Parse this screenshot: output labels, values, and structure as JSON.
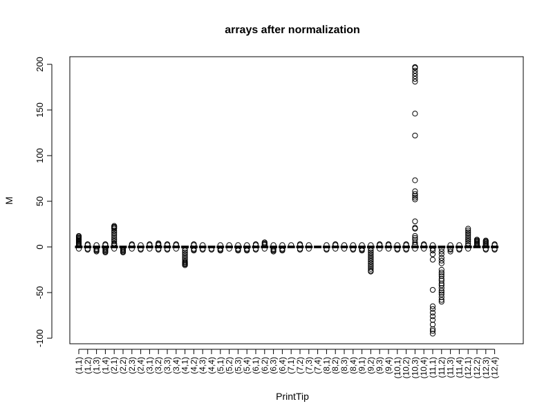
{
  "chart_data": {
    "type": "boxplot",
    "title": "arrays after normalization",
    "xlabel": "PrintTip",
    "ylabel": "M",
    "ylim": [
      -105,
      210
    ],
    "yticks": [
      -100,
      -50,
      0,
      50,
      100,
      150,
      200
    ],
    "ytick_labels": [
      "-100",
      "-50",
      "0",
      "50",
      "100",
      "150",
      "200"
    ],
    "categories": [
      "(1,1)",
      "(1,2)",
      "(1,3)",
      "(1,4)",
      "(2,1)",
      "(2,2)",
      "(2,3)",
      "(2,4)",
      "(3,1)",
      "(3,2)",
      "(3,3)",
      "(3,4)",
      "(4,1)",
      "(4,2)",
      "(4,3)",
      "(4,4)",
      "(5,1)",
      "(5,2)",
      "(5,3)",
      "(5,4)",
      "(6,1)",
      "(6,2)",
      "(6,3)",
      "(6,4)",
      "(7,1)",
      "(7,2)",
      "(7,3)",
      "(7,4)",
      "(8,1)",
      "(8,2)",
      "(8,3)",
      "(8,4)",
      "(9,1)",
      "(9,2)",
      "(9,3)",
      "(9,4)",
      "(10,1)",
      "(10,2)",
      "(10,3)",
      "(10,4)",
      "(11,1)",
      "(11,2)",
      "(11,3)",
      "(11,4)",
      "(12,1)",
      "(12,2)",
      "(12,3)",
      "(12,4)"
    ],
    "groups": [
      {
        "range": [
          -1,
          1
        ],
        "outliers": [
          -2,
          2,
          3,
          4,
          5,
          6,
          7,
          8,
          9,
          10,
          11,
          12
        ]
      },
      {
        "range": [
          -1,
          1
        ],
        "outliers": [
          -3,
          -2,
          2,
          3
        ]
      },
      {
        "range": [
          -1,
          1
        ],
        "outliers": [
          -5,
          -4,
          -3,
          -2,
          2
        ]
      },
      {
        "range": [
          -1,
          1
        ],
        "outliers": [
          -6,
          -5,
          -4,
          -3,
          -2,
          2,
          3
        ]
      },
      {
        "range": [
          -1,
          1
        ],
        "outliers": [
          -2,
          2,
          3,
          4,
          6,
          8,
          10,
          12,
          14,
          16,
          18,
          20,
          21,
          22,
          23
        ]
      },
      {
        "range": [
          -1,
          1
        ],
        "outliers": [
          -6,
          -5,
          -4,
          -3,
          -2
        ]
      },
      {
        "range": [
          -1,
          1
        ],
        "outliers": [
          -2,
          2,
          3
        ]
      },
      {
        "range": [
          -1,
          1
        ],
        "outliers": [
          -3,
          -2,
          2
        ]
      },
      {
        "range": [
          -1,
          1
        ],
        "outliers": [
          -2,
          2,
          3
        ]
      },
      {
        "range": [
          -1,
          1
        ],
        "outliers": [
          -3,
          -2,
          2,
          3,
          4
        ]
      },
      {
        "range": [
          -1,
          1
        ],
        "outliers": [
          -3,
          -2,
          2,
          3
        ]
      },
      {
        "range": [
          -1,
          1
        ],
        "outliers": [
          -2,
          2,
          3
        ]
      },
      {
        "range": [
          -1,
          1
        ],
        "outliers": [
          -20,
          -19,
          -18,
          -17,
          -16,
          -14,
          -12,
          -10,
          -8,
          -6,
          -4,
          -2
        ]
      },
      {
        "range": [
          -1,
          1
        ],
        "outliers": [
          -4,
          -3,
          -2,
          2,
          3
        ]
      },
      {
        "range": [
          -1,
          1
        ],
        "outliers": [
          -3,
          -2,
          2
        ]
      },
      {
        "range": [
          -1,
          1
        ],
        "outliers": [
          -3,
          -2
        ]
      },
      {
        "range": [
          -1,
          1
        ],
        "outliers": [
          -4,
          -3,
          -2,
          2
        ]
      },
      {
        "range": [
          -1,
          1
        ],
        "outliers": [
          -2,
          2
        ]
      },
      {
        "range": [
          -1,
          1
        ],
        "outliers": [
          -4,
          -3,
          -2,
          2
        ]
      },
      {
        "range": [
          -1,
          1
        ],
        "outliers": [
          -4,
          -3,
          -2,
          2
        ]
      },
      {
        "range": [
          -1,
          1
        ],
        "outliers": [
          -3,
          -2,
          2,
          3
        ]
      },
      {
        "range": [
          -1,
          1
        ],
        "outliers": [
          -2,
          2,
          3,
          4,
          5
        ]
      },
      {
        "range": [
          -1,
          1
        ],
        "outliers": [
          -5,
          -4,
          -3,
          -2,
          2
        ]
      },
      {
        "range": [
          -1,
          1
        ],
        "outliers": [
          -4,
          -3,
          -2,
          2
        ]
      },
      {
        "range": [
          -1,
          1
        ],
        "outliers": [
          2
        ]
      },
      {
        "range": [
          -1,
          1
        ],
        "outliers": [
          -3,
          -2,
          2,
          3
        ]
      },
      {
        "range": [
          -1,
          1
        ],
        "outliers": [
          -2,
          2
        ]
      },
      {
        "range": [
          -1,
          1
        ],
        "outliers": []
      },
      {
        "range": [
          -1,
          1
        ],
        "outliers": [
          -3,
          -2,
          2
        ]
      },
      {
        "range": [
          -1,
          1
        ],
        "outliers": [
          -2,
          2,
          3
        ]
      },
      {
        "range": [
          -1,
          1
        ],
        "outliers": [
          -2,
          2
        ]
      },
      {
        "range": [
          -1,
          1
        ],
        "outliers": [
          -3,
          -2,
          2
        ]
      },
      {
        "range": [
          -1,
          1
        ],
        "outliers": [
          -4,
          -3,
          -2,
          2
        ]
      },
      {
        "range": [
          -1,
          1
        ],
        "outliers": [
          -27,
          -26,
          -24,
          -22,
          -20,
          -18,
          -16,
          -14,
          -12,
          -10,
          -8,
          -6,
          -4,
          -2,
          2
        ]
      },
      {
        "range": [
          -1,
          1
        ],
        "outliers": [
          -2,
          2,
          3
        ]
      },
      {
        "range": [
          -1,
          1
        ],
        "outliers": [
          -2,
          2,
          3
        ]
      },
      {
        "range": [
          -1,
          1
        ],
        "outliers": [
          -3,
          -2,
          2
        ]
      },
      {
        "range": [
          -1,
          1
        ],
        "outliers": [
          -3,
          -2,
          2,
          3
        ]
      },
      {
        "range": [
          -1,
          1
        ],
        "outliers": [
          -2,
          2,
          3,
          5,
          8,
          10,
          12,
          20,
          21,
          28,
          52,
          54,
          56,
          58,
          61,
          73,
          122,
          146,
          181,
          184,
          187,
          190,
          193,
          196,
          197
        ]
      },
      {
        "range": [
          -1,
          1
        ],
        "outliers": [
          -2,
          2,
          3
        ]
      },
      {
        "range": [
          -1,
          1
        ],
        "outliers": [
          -95,
          -92,
          -90,
          -85,
          -80,
          -76,
          -72,
          -68,
          -65,
          -47,
          -14,
          -8,
          -4,
          -2,
          2
        ]
      },
      {
        "range": [
          -1,
          1
        ],
        "outliers": [
          -60,
          -58,
          -55,
          -52,
          -50,
          -48,
          -45,
          -42,
          -40,
          -37,
          -35,
          -32,
          -30,
          -28,
          -25,
          -18,
          -15,
          -12,
          -8,
          -5,
          -2
        ]
      },
      {
        "range": [
          -1,
          1
        ],
        "outliers": [
          -5,
          -3,
          -2,
          2
        ]
      },
      {
        "range": [
          -1,
          1
        ],
        "outliers": [
          -3,
          -2,
          2
        ]
      },
      {
        "range": [
          -1,
          1
        ],
        "outliers": [
          -2,
          2,
          4,
          6,
          8,
          10,
          12,
          14,
          16,
          18,
          20
        ]
      },
      {
        "range": [
          -1,
          1
        ],
        "outliers": [
          2,
          3,
          4,
          5,
          6,
          7,
          8
        ]
      },
      {
        "range": [
          -1,
          1
        ],
        "outliers": [
          -3,
          -2,
          2,
          3,
          4,
          5,
          6,
          7
        ]
      },
      {
        "range": [
          -1,
          1
        ],
        "outliers": [
          -3,
          -2,
          2,
          3
        ]
      }
    ],
    "grid": false,
    "legend": "none"
  }
}
